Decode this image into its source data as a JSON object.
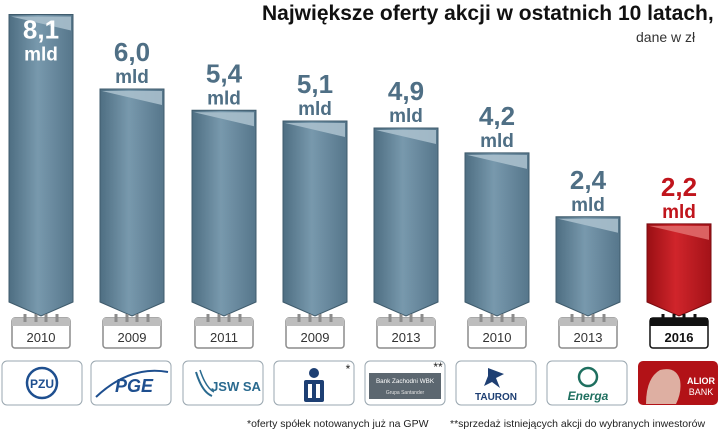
{
  "title": "Największe oferty akcji w ostatnich 10 latach,",
  "subtitle": "dane w zł",
  "unit": "mld",
  "chart_data": {
    "type": "bar",
    "categories": [
      "PZU",
      "PGE",
      "JSW SA",
      "PKO",
      "Bank Zachodni WBK",
      "TAURON",
      "Energa",
      "ALIOR BANK"
    ],
    "years": [
      "2010",
      "2009",
      "2011",
      "2009",
      "2013",
      "2010",
      "2013",
      "2016"
    ],
    "values": [
      8.1,
      6.0,
      5.4,
      5.1,
      4.9,
      4.2,
      2.4,
      2.2
    ],
    "value_labels": [
      "8,1",
      "6,0",
      "5,4",
      "5,1",
      "4,9",
      "4,2",
      "2,4",
      "2,2"
    ],
    "markers": [
      "",
      "",
      "",
      "*",
      "**",
      "",
      "",
      ""
    ],
    "highlight_index": 7,
    "title": "Największe oferty akcji w ostatnich 10 latach,",
    "subtitle": "dane w zł",
    "xlabel": "",
    "ylabel": ""
  },
  "logos": {
    "pzu": "PZU",
    "pge": "PGE",
    "jsw": "JSW SA",
    "bzwbk_line1": "Bank Zachodni WBK",
    "bzwbk_line2": "Grupa Santander",
    "tauron": "TAURON",
    "energa": "Energa",
    "alior_line1": "ALIOR",
    "alior_line2": "BANK"
  },
  "footnotes": {
    "note1": "*oferty spółek notowanych już na GPW",
    "note2": "**sprzedaż istniejących akcji do wybranych inwestorów"
  },
  "colors": {
    "bar": "#6e8fa3",
    "bar_light": "#a9bfcc",
    "bar_text": "#4f6f85",
    "highlight": "#c0151c",
    "highlight_light": "#e06a6a",
    "calendar": "#8c8c8c"
  }
}
